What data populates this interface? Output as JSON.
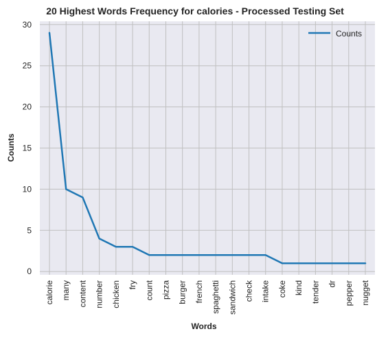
{
  "chart_data": {
    "type": "line",
    "title": "20 Highest Words Frequency for calories - Processed Testing Set",
    "xlabel": "Words",
    "ylabel": "Counts",
    "categories": [
      "calorie",
      "many",
      "content",
      "number",
      "chicken",
      "fry",
      "count",
      "pizza",
      "burger",
      "french",
      "spaghetti",
      "sandwich",
      "check",
      "intake",
      "coke",
      "kind",
      "tender",
      "dr",
      "pepper",
      "nugget"
    ],
    "series": [
      {
        "name": "Counts",
        "values": [
          29,
          10,
          9,
          4,
          3,
          3,
          2,
          2,
          2,
          2,
          2,
          2,
          2,
          2,
          1,
          1,
          1,
          1,
          1,
          1
        ],
        "color": "#1f77b4"
      }
    ],
    "ylim": [
      -0.4,
      30.4
    ],
    "yticks": [
      0,
      5,
      10,
      15,
      20,
      25,
      30
    ],
    "grid": true,
    "legend_position": "top-right",
    "plot_background": "#e9e9f1",
    "grid_color": "#bfbfbf"
  }
}
